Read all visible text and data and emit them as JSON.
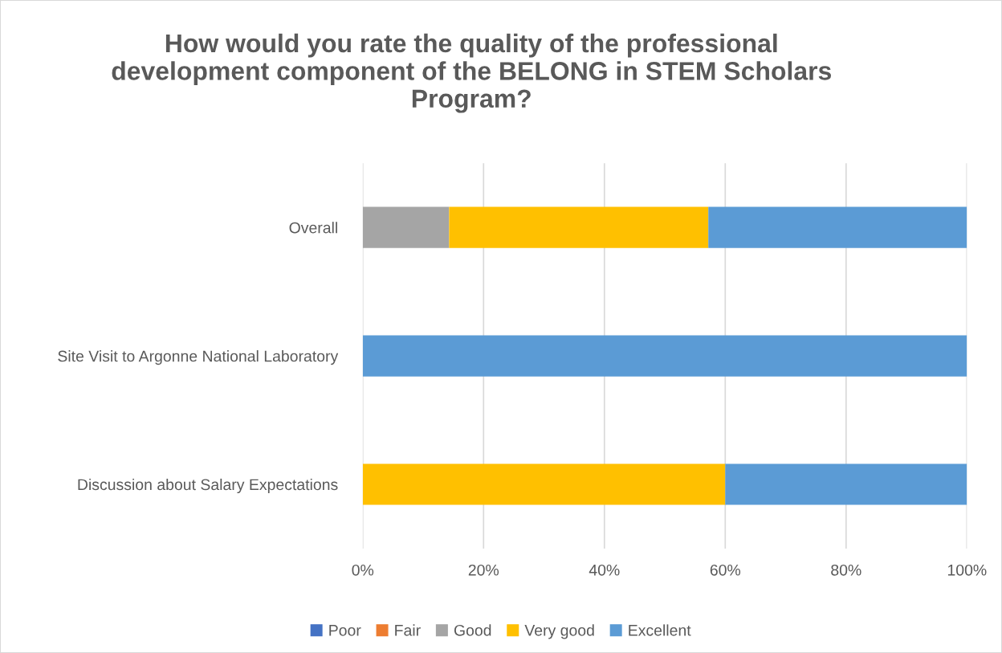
{
  "chart_data": {
    "type": "bar",
    "orientation": "horizontal",
    "stacked": true,
    "title": "How would you rate the quality of the professional\ndevelopment component of the BELONG in STEM Scholars\nProgram?",
    "categories": [
      "Overall",
      "Site Visit to Argonne National Laboratory",
      "Discussion about Salary Expectations"
    ],
    "series": [
      {
        "name": "Poor",
        "color": "#4472c4",
        "values": [
          0,
          0,
          0
        ]
      },
      {
        "name": "Fair",
        "color": "#ed7d31",
        "values": [
          0,
          0,
          0
        ]
      },
      {
        "name": "Good",
        "color": "#a5a5a5",
        "values": [
          14.3,
          0,
          0
        ]
      },
      {
        "name": "Very good",
        "color": "#ffc000",
        "values": [
          42.9,
          0,
          60
        ]
      },
      {
        "name": "Excellent",
        "color": "#5b9bd5",
        "values": [
          42.8,
          100,
          40
        ]
      }
    ],
    "xlim": [
      0,
      100
    ],
    "xticks": [
      {
        "value": 0,
        "label": "0%"
      },
      {
        "value": 20,
        "label": "20%"
      },
      {
        "value": 40,
        "label": "40%"
      },
      {
        "value": 60,
        "label": "60%"
      },
      {
        "value": 80,
        "label": "80%"
      },
      {
        "value": 100,
        "label": "100%"
      }
    ],
    "grid": "x",
    "legend": "bottom"
  }
}
